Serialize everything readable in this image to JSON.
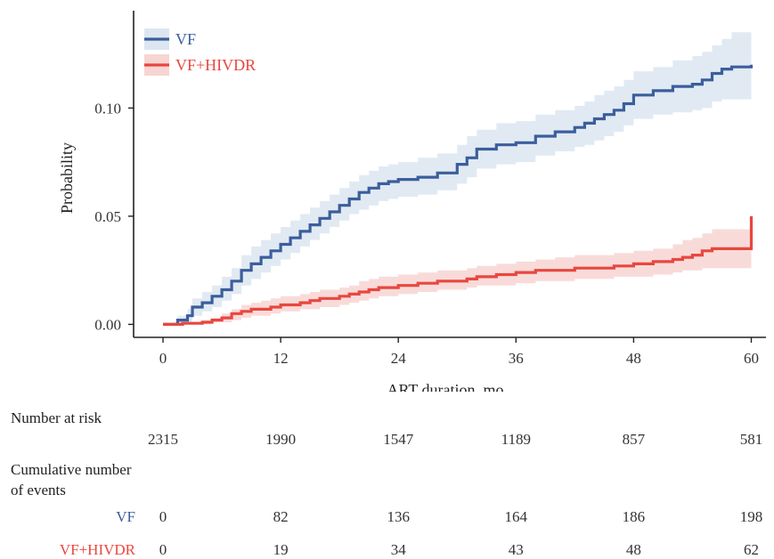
{
  "chart_data": {
    "type": "line",
    "xlabel": "ART duration, mo",
    "ylabel": "Probability",
    "x_ticks": [
      0,
      12,
      24,
      36,
      48,
      60
    ],
    "y_ticks": [
      "0.00",
      "0.05",
      "0.10"
    ],
    "xlim": [
      -3,
      61.5
    ],
    "ylim": [
      -0.006,
      0.145
    ],
    "step": true,
    "confidence_band": true,
    "legend_position": "top-left",
    "series": [
      {
        "name": "VF",
        "color": "#3b5e9c",
        "band_color": "#dce6f1",
        "x": [
          0,
          1.5,
          2.5,
          3,
          4,
          5,
          6,
          7,
          8,
          9,
          10,
          11,
          12,
          13,
          14,
          15,
          16,
          17,
          18,
          19,
          20,
          21,
          22,
          23,
          24,
          26,
          28,
          30,
          31,
          32,
          34,
          36,
          38,
          40,
          42,
          43,
          44,
          45,
          46,
          47,
          48,
          50,
          52,
          54,
          55,
          56,
          57,
          58,
          60
        ],
        "y": [
          0,
          0.002,
          0.004,
          0.008,
          0.01,
          0.013,
          0.016,
          0.02,
          0.025,
          0.028,
          0.031,
          0.034,
          0.037,
          0.04,
          0.043,
          0.046,
          0.049,
          0.052,
          0.055,
          0.058,
          0.061,
          0.063,
          0.065,
          0.066,
          0.067,
          0.068,
          0.07,
          0.074,
          0.077,
          0.081,
          0.083,
          0.084,
          0.087,
          0.089,
          0.091,
          0.093,
          0.095,
          0.097,
          0.099,
          0.102,
          0.106,
          0.108,
          0.11,
          0.111,
          0.113,
          0.116,
          0.118,
          0.119,
          0.12
        ],
        "lower": [
          0,
          0.0,
          0.001,
          0.004,
          0.006,
          0.008,
          0.011,
          0.014,
          0.018,
          0.021,
          0.024,
          0.027,
          0.03,
          0.033,
          0.036,
          0.039,
          0.042,
          0.045,
          0.048,
          0.051,
          0.053,
          0.055,
          0.057,
          0.058,
          0.059,
          0.06,
          0.062,
          0.065,
          0.068,
          0.072,
          0.074,
          0.075,
          0.078,
          0.08,
          0.082,
          0.083,
          0.085,
          0.087,
          0.089,
          0.092,
          0.095,
          0.097,
          0.098,
          0.099,
          0.1,
          0.103,
          0.104,
          0.104,
          0.104
        ],
        "upper": [
          0,
          0.004,
          0.007,
          0.012,
          0.015,
          0.018,
          0.022,
          0.026,
          0.032,
          0.036,
          0.039,
          0.042,
          0.045,
          0.048,
          0.051,
          0.054,
          0.057,
          0.06,
          0.063,
          0.066,
          0.069,
          0.071,
          0.073,
          0.074,
          0.075,
          0.077,
          0.079,
          0.083,
          0.087,
          0.09,
          0.093,
          0.094,
          0.097,
          0.099,
          0.101,
          0.103,
          0.106,
          0.108,
          0.11,
          0.113,
          0.117,
          0.119,
          0.122,
          0.124,
          0.126,
          0.129,
          0.132,
          0.135,
          0.137
        ]
      },
      {
        "name": "VF+HIVDR",
        "color": "#e8473f",
        "band_color": "#f7d5d2",
        "x": [
          0,
          2,
          4,
          5,
          6,
          7,
          8,
          9,
          10,
          11,
          12,
          14,
          15,
          16,
          18,
          19,
          20,
          21,
          22,
          24,
          26,
          28,
          30,
          31,
          32,
          34,
          36,
          38,
          40,
          42,
          44,
          46,
          48,
          50,
          52,
          53,
          54,
          55,
          56,
          60
        ],
        "y": [
          0,
          0.0005,
          0.001,
          0.002,
          0.003,
          0.005,
          0.006,
          0.007,
          0.007,
          0.008,
          0.009,
          0.01,
          0.011,
          0.012,
          0.013,
          0.014,
          0.015,
          0.016,
          0.017,
          0.018,
          0.019,
          0.02,
          0.02,
          0.021,
          0.022,
          0.023,
          0.024,
          0.025,
          0.025,
          0.026,
          0.026,
          0.027,
          0.028,
          0.029,
          0.03,
          0.031,
          0.032,
          0.034,
          0.035,
          0.05
        ],
        "lower": [
          0,
          0.0,
          0.0,
          0.001,
          0.001,
          0.002,
          0.003,
          0.004,
          0.004,
          0.005,
          0.006,
          0.007,
          0.007,
          0.008,
          0.009,
          0.01,
          0.011,
          0.012,
          0.013,
          0.014,
          0.015,
          0.016,
          0.016,
          0.017,
          0.018,
          0.018,
          0.019,
          0.02,
          0.02,
          0.021,
          0.021,
          0.022,
          0.022,
          0.023,
          0.024,
          0.025,
          0.025,
          0.026,
          0.026,
          0.026
        ],
        "upper": [
          0,
          0.001,
          0.002,
          0.003,
          0.005,
          0.007,
          0.009,
          0.01,
          0.011,
          0.012,
          0.013,
          0.014,
          0.015,
          0.016,
          0.017,
          0.018,
          0.02,
          0.021,
          0.022,
          0.023,
          0.024,
          0.025,
          0.025,
          0.026,
          0.027,
          0.028,
          0.029,
          0.03,
          0.031,
          0.032,
          0.032,
          0.033,
          0.034,
          0.035,
          0.037,
          0.039,
          0.04,
          0.042,
          0.044,
          0.044
        ]
      }
    ]
  },
  "risk_table": {
    "number_at_risk_label": "Number at risk",
    "number_at_risk": [
      "2315",
      "1990",
      "1547",
      "1189",
      "857",
      "581"
    ],
    "cumulative_label_line1": "Cumulative number",
    "cumulative_label_line2": "of events",
    "rows": [
      {
        "label": "VF",
        "color": "#3b5e9c",
        "values": [
          "0",
          "82",
          "136",
          "164",
          "186",
          "198"
        ]
      },
      {
        "label": "VF+HIVDR",
        "color": "#e8473f",
        "values": [
          "0",
          "19",
          "34",
          "43",
          "48",
          "62"
        ]
      }
    ]
  }
}
